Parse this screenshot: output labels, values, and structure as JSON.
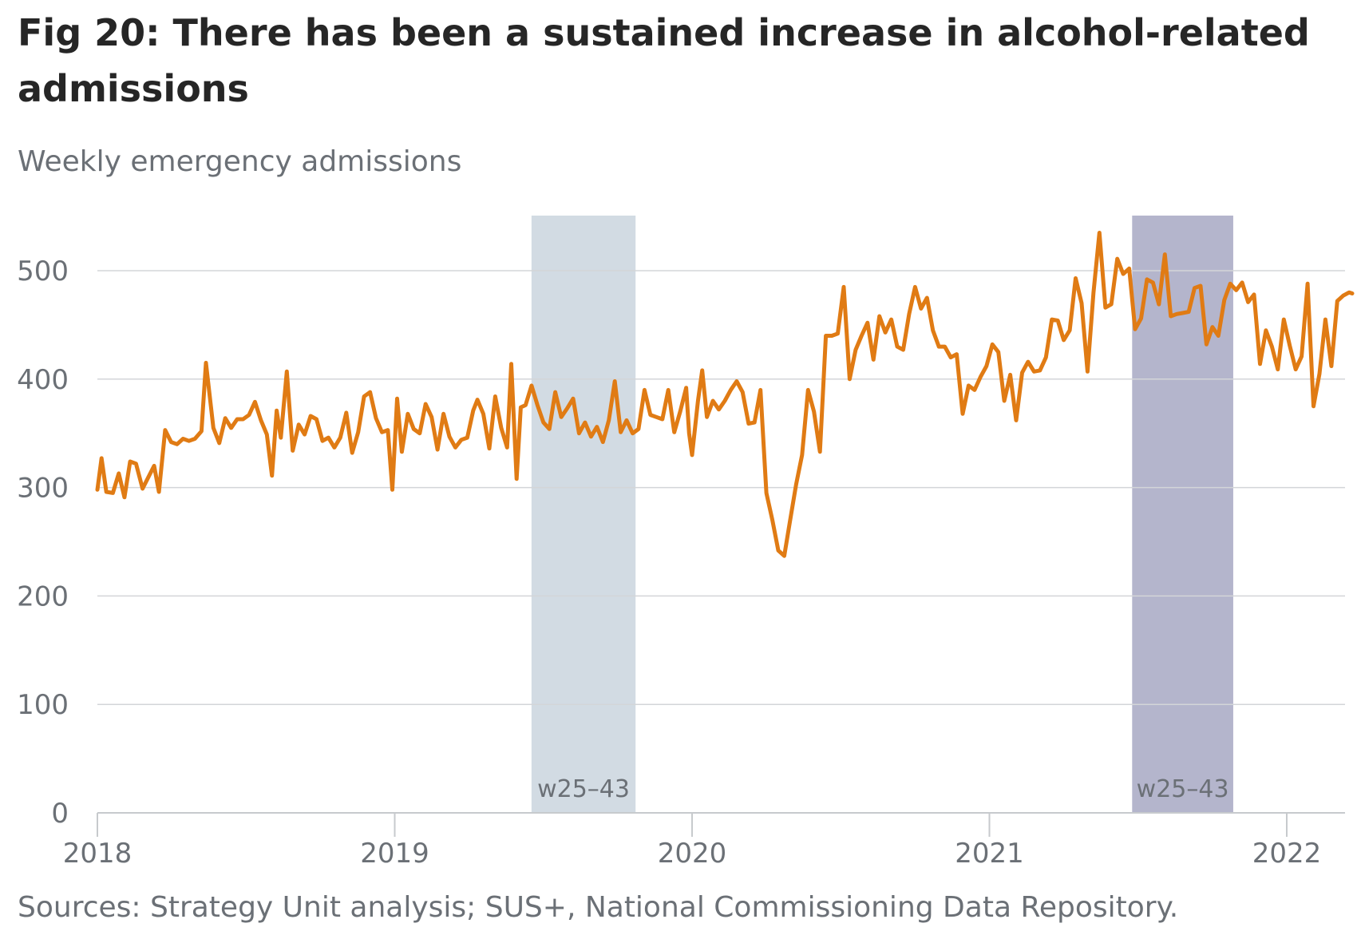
{
  "chart_data": {
    "type": "line",
    "title": "Fig 20: There has been a sustained increase in alcohol-related admissions",
    "subtitle": "Weekly emergency admissions",
    "source": "Sources: Strategy Unit analysis; SUS+, National Commissioning Data Repository.",
    "xlabel": "",
    "ylabel": "",
    "x_range": [
      2018.0,
      2022.22
    ],
    "ylim": [
      0,
      550
    ],
    "y_ticks": [
      0,
      100,
      200,
      300,
      400,
      500
    ],
    "x_ticks": [
      {
        "value": 2018,
        "label": "2018"
      },
      {
        "value": 2019,
        "label": "2019"
      },
      {
        "value": 2020,
        "label": "2020"
      },
      {
        "value": 2021,
        "label": "2021"
      },
      {
        "value": 2022,
        "label": "2022"
      }
    ],
    "grid": true,
    "line_color": "#E07B14",
    "highlight_bands": [
      {
        "x_start": 2019.46,
        "x_end": 2019.81,
        "label": "w25–43",
        "color": "#d2dbe3"
      },
      {
        "x_start": 2021.48,
        "x_end": 2021.82,
        "label": "w25–43",
        "color": "#b4b5cc"
      }
    ],
    "series": [
      {
        "values": [
          [
            2018.0,
            298
          ],
          [
            2018.014,
            327
          ],
          [
            2018.03,
            296
          ],
          [
            2018.052,
            295
          ],
          [
            2018.072,
            313
          ],
          [
            2018.091,
            291
          ],
          [
            2018.11,
            324
          ],
          [
            2018.13,
            322
          ],
          [
            2018.152,
            299
          ],
          [
            2018.174,
            311
          ],
          [
            2018.191,
            320
          ],
          [
            2018.207,
            296
          ],
          [
            2018.228,
            353
          ],
          [
            2018.248,
            342
          ],
          [
            2018.268,
            340
          ],
          [
            2018.288,
            345
          ],
          [
            2018.308,
            343
          ],
          [
            2018.328,
            345
          ],
          [
            2018.35,
            352
          ],
          [
            2018.365,
            415
          ],
          [
            2018.39,
            355
          ],
          [
            2018.41,
            341
          ],
          [
            2018.43,
            364
          ],
          [
            2018.45,
            355
          ],
          [
            2018.47,
            363
          ],
          [
            2018.49,
            363
          ],
          [
            2018.51,
            367
          ],
          [
            2018.53,
            379
          ],
          [
            2018.55,
            362
          ],
          [
            2018.57,
            349
          ],
          [
            2018.587,
            311
          ],
          [
            2018.603,
            371
          ],
          [
            2018.617,
            346
          ],
          [
            2018.637,
            407
          ],
          [
            2018.657,
            334
          ],
          [
            2018.677,
            358
          ],
          [
            2018.697,
            349
          ],
          [
            2018.717,
            366
          ],
          [
            2018.737,
            363
          ],
          [
            2018.757,
            343
          ],
          [
            2018.777,
            346
          ],
          [
            2018.797,
            337
          ],
          [
            2018.817,
            346
          ],
          [
            2018.837,
            369
          ],
          [
            2018.857,
            332
          ],
          [
            2018.877,
            351
          ],
          [
            2018.897,
            384
          ],
          [
            2018.917,
            388
          ],
          [
            2018.937,
            364
          ],
          [
            2018.957,
            351
          ],
          [
            2018.977,
            353
          ],
          [
            2018.992,
            298
          ],
          [
            2019.008,
            382
          ],
          [
            2019.024,
            333
          ],
          [
            2019.044,
            368
          ],
          [
            2019.064,
            354
          ],
          [
            2019.084,
            350
          ],
          [
            2019.104,
            377
          ],
          [
            2019.124,
            365
          ],
          [
            2019.144,
            335
          ],
          [
            2019.164,
            368
          ],
          [
            2019.184,
            347
          ],
          [
            2019.204,
            337
          ],
          [
            2019.224,
            344
          ],
          [
            2019.244,
            346
          ],
          [
            2019.264,
            371
          ],
          [
            2019.278,
            381
          ],
          [
            2019.298,
            368
          ],
          [
            2019.318,
            336
          ],
          [
            2019.338,
            384
          ],
          [
            2019.358,
            355
          ],
          [
            2019.378,
            337
          ],
          [
            2019.392,
            414
          ],
          [
            2019.41,
            308
          ],
          [
            2019.424,
            374
          ],
          [
            2019.44,
            376
          ],
          [
            2019.46,
            394
          ],
          [
            2019.48,
            376
          ],
          [
            2019.5,
            360
          ],
          [
            2019.52,
            354
          ],
          [
            2019.54,
            388
          ],
          [
            2019.56,
            365
          ],
          [
            2019.58,
            373
          ],
          [
            2019.6,
            382
          ],
          [
            2019.62,
            350
          ],
          [
            2019.64,
            360
          ],
          [
            2019.66,
            347
          ],
          [
            2019.68,
            356
          ],
          [
            2019.7,
            342
          ],
          [
            2019.72,
            362
          ],
          [
            2019.74,
            398
          ],
          [
            2019.76,
            351
          ],
          [
            2019.78,
            362
          ],
          [
            2019.8,
            350
          ],
          [
            2019.82,
            354
          ],
          [
            2019.84,
            390
          ],
          [
            2019.86,
            367
          ],
          [
            2019.88,
            365
          ],
          [
            2019.9,
            363
          ],
          [
            2019.92,
            390
          ],
          [
            2019.94,
            351
          ],
          [
            2019.96,
            370
          ],
          [
            2019.98,
            392
          ],
          [
            2019.99,
            350
          ],
          [
            2020.0,
            330
          ],
          [
            2020.02,
            380
          ],
          [
            2020.034,
            408
          ],
          [
            2020.05,
            365
          ],
          [
            2020.07,
            380
          ],
          [
            2020.09,
            372
          ],
          [
            2020.11,
            380
          ],
          [
            2020.13,
            390
          ],
          [
            2020.15,
            398
          ],
          [
            2020.17,
            388
          ],
          [
            2020.19,
            359
          ],
          [
            2020.21,
            360
          ],
          [
            2020.23,
            390
          ],
          [
            2020.25,
            295
          ],
          [
            2020.27,
            270
          ],
          [
            2020.29,
            242
          ],
          [
            2020.31,
            237
          ],
          [
            2020.33,
            270
          ],
          [
            2020.35,
            303
          ],
          [
            2020.37,
            330
          ],
          [
            2020.39,
            390
          ],
          [
            2020.41,
            370
          ],
          [
            2020.43,
            333
          ],
          [
            2020.45,
            440
          ],
          [
            2020.47,
            440
          ],
          [
            2020.49,
            442
          ],
          [
            2020.51,
            485
          ],
          [
            2020.53,
            400
          ],
          [
            2020.55,
            427
          ],
          [
            2020.57,
            440
          ],
          [
            2020.59,
            452
          ],
          [
            2020.61,
            418
          ],
          [
            2020.63,
            458
          ],
          [
            2020.65,
            443
          ],
          [
            2020.67,
            455
          ],
          [
            2020.69,
            430
          ],
          [
            2020.71,
            427
          ],
          [
            2020.73,
            460
          ],
          [
            2020.75,
            485
          ],
          [
            2020.77,
            465
          ],
          [
            2020.79,
            475
          ],
          [
            2020.81,
            445
          ],
          [
            2020.83,
            430
          ],
          [
            2020.85,
            430
          ],
          [
            2020.87,
            420
          ],
          [
            2020.89,
            423
          ],
          [
            2020.91,
            368
          ],
          [
            2020.93,
            394
          ],
          [
            2020.95,
            390
          ],
          [
            2020.97,
            402
          ],
          [
            2020.99,
            412
          ],
          [
            2021.01,
            432
          ],
          [
            2021.03,
            425
          ],
          [
            2021.05,
            380
          ],
          [
            2021.07,
            404
          ],
          [
            2021.09,
            362
          ],
          [
            2021.11,
            406
          ],
          [
            2021.13,
            416
          ],
          [
            2021.15,
            407
          ],
          [
            2021.17,
            408
          ],
          [
            2021.19,
            420
          ],
          [
            2021.21,
            455
          ],
          [
            2021.23,
            454
          ],
          [
            2021.25,
            436
          ],
          [
            2021.27,
            445
          ],
          [
            2021.29,
            493
          ],
          [
            2021.31,
            470
          ],
          [
            2021.33,
            407
          ],
          [
            2021.35,
            480
          ],
          [
            2021.37,
            535
          ],
          [
            2021.39,
            466
          ],
          [
            2021.41,
            469
          ],
          [
            2021.43,
            511
          ],
          [
            2021.45,
            497
          ],
          [
            2021.47,
            502
          ],
          [
            2021.49,
            446
          ],
          [
            2021.51,
            456
          ],
          [
            2021.53,
            492
          ],
          [
            2021.55,
            489
          ],
          [
            2021.57,
            469
          ],
          [
            2021.59,
            515
          ],
          [
            2021.61,
            458
          ],
          [
            2021.63,
            460
          ],
          [
            2021.65,
            461
          ],
          [
            2021.67,
            462
          ],
          [
            2021.69,
            484
          ],
          [
            2021.71,
            486
          ],
          [
            2021.73,
            432
          ],
          [
            2021.75,
            448
          ],
          [
            2021.77,
            440
          ],
          [
            2021.79,
            473
          ],
          [
            2021.81,
            488
          ],
          [
            2021.83,
            482
          ],
          [
            2021.85,
            489
          ],
          [
            2021.87,
            471
          ],
          [
            2021.89,
            478
          ],
          [
            2021.91,
            414
          ],
          [
            2021.93,
            445
          ],
          [
            2021.95,
            430
          ],
          [
            2021.97,
            409
          ],
          [
            2021.99,
            455
          ],
          [
            2022.01,
            431
          ],
          [
            2022.03,
            409
          ],
          [
            2022.05,
            421
          ],
          [
            2022.07,
            488
          ],
          [
            2022.09,
            375
          ],
          [
            2022.11,
            405
          ],
          [
            2022.13,
            455
          ],
          [
            2022.15,
            412
          ],
          [
            2022.17,
            472
          ],
          [
            2022.19,
            477
          ],
          [
            2022.21,
            480
          ],
          [
            2022.22,
            479
          ]
        ]
      }
    ]
  }
}
